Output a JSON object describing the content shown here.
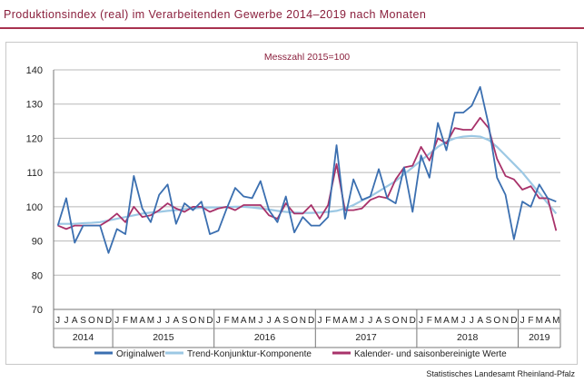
{
  "header": {
    "title": "Produktionsindex (real) im Verarbeitenden Gewerbe 2014–2019 nach Monaten"
  },
  "footer": {
    "source": "Statistisches Landesamt Rheinland-Pfalz"
  },
  "colors": {
    "title": "#8a1f3c",
    "rule": "#a8324f",
    "original": "#3b6fb0",
    "trend": "#9cc8e4",
    "seasonal": "#a8326a",
    "grid": "#b8b8b8"
  },
  "chart_data": {
    "type": "line",
    "subtitle": "Messzahl 2015=100",
    "ylim": [
      70,
      140
    ],
    "yticks": [
      70,
      80,
      90,
      100,
      110,
      120,
      130,
      140
    ],
    "grid": "horizontal",
    "legend_position": "bottom",
    "x_month_labels": [
      "J",
      "J",
      "A",
      "S",
      "O",
      "N",
      "D",
      "J",
      "F",
      "M",
      "A",
      "M",
      "J",
      "J",
      "A",
      "S",
      "O",
      "N",
      "D",
      "J",
      "F",
      "M",
      "A",
      "M",
      "J",
      "J",
      "A",
      "S",
      "O",
      "N",
      "D",
      "J",
      "F",
      "M",
      "A",
      "M",
      "J",
      "J",
      "A",
      "S",
      "O",
      "N",
      "D",
      "J",
      "F",
      "M",
      "A",
      "M",
      "J",
      "J",
      "A",
      "S",
      "O",
      "N",
      "D",
      "J",
      "F",
      "M",
      "A",
      "M"
    ],
    "year_groups": [
      {
        "label": "2014",
        "start": 0,
        "count": 7
      },
      {
        "label": "2015",
        "start": 7,
        "count": 12
      },
      {
        "label": "2016",
        "start": 19,
        "count": 12
      },
      {
        "label": "2017",
        "start": 31,
        "count": 12
      },
      {
        "label": "2018",
        "start": 43,
        "count": 12
      },
      {
        "label": "2019",
        "start": 55,
        "count": 5
      }
    ],
    "series": [
      {
        "name": "Originalwert",
        "color": "#3b6fb0",
        "values": [
          94.5,
          102.5,
          89.5,
          94.5,
          94.5,
          94.5,
          86.5,
          93.5,
          92.0,
          109.0,
          99.5,
          95.5,
          103.5,
          106.5,
          95.0,
          101.0,
          99.0,
          101.5,
          92.0,
          93.0,
          99.5,
          105.5,
          103.0,
          102.5,
          107.5,
          99.0,
          95.5,
          103.0,
          92.5,
          97.0,
          94.5,
          94.5,
          97.0,
          118.0,
          96.5,
          108.0,
          102.0,
          103.0,
          111.0,
          102.5,
          101.0,
          111.5,
          98.5,
          115.0,
          108.5,
          124.5,
          116.5,
          127.5,
          127.5,
          129.5,
          135.0,
          124.0,
          108.5,
          103.5,
          90.5,
          101.5,
          100.0,
          106.5,
          102.5,
          101.5
        ]
      },
      {
        "name": "Trend-Konjunktur-Komponente",
        "color": "#9cc8e4",
        "values": [
          95.0,
          95.0,
          95.0,
          95.2,
          95.3,
          95.5,
          96.0,
          96.5,
          97.0,
          97.5,
          98.0,
          98.3,
          98.5,
          98.8,
          99.0,
          99.3,
          99.5,
          99.7,
          99.8,
          99.8,
          99.9,
          100.0,
          100.0,
          99.8,
          99.5,
          99.2,
          98.8,
          98.5,
          98.3,
          98.2,
          98.2,
          98.3,
          98.5,
          98.8,
          99.5,
          100.5,
          101.8,
          103.0,
          104.5,
          106.0,
          107.5,
          109.5,
          111.5,
          113.5,
          115.5,
          117.5,
          119.0,
          120.0,
          120.5,
          120.7,
          120.5,
          119.5,
          117.5,
          115.0,
          112.5,
          110.0,
          107.0,
          104.0,
          101.0,
          98.0
        ]
      },
      {
        "name": "Kalender- und saisonbereinigte Werte",
        "color": "#a8326a",
        "values": [
          94.5,
          93.5,
          94.5,
          94.5,
          94.5,
          94.5,
          96.0,
          98.0,
          95.5,
          100.0,
          97.0,
          97.5,
          99.0,
          101.0,
          99.5,
          98.5,
          100.0,
          100.0,
          98.5,
          99.5,
          100.0,
          99.0,
          100.5,
          100.5,
          100.5,
          97.5,
          96.5,
          101.0,
          98.0,
          98.0,
          100.5,
          96.5,
          100.5,
          112.5,
          99.0,
          99.0,
          99.5,
          102.0,
          103.0,
          102.5,
          108.0,
          111.5,
          112.0,
          117.5,
          113.5,
          120.0,
          118.5,
          123.0,
          122.5,
          122.5,
          126.0,
          123.0,
          114.0,
          109.0,
          108.0,
          105.0,
          106.0,
          102.5,
          102.5,
          93.0
        ]
      }
    ]
  }
}
